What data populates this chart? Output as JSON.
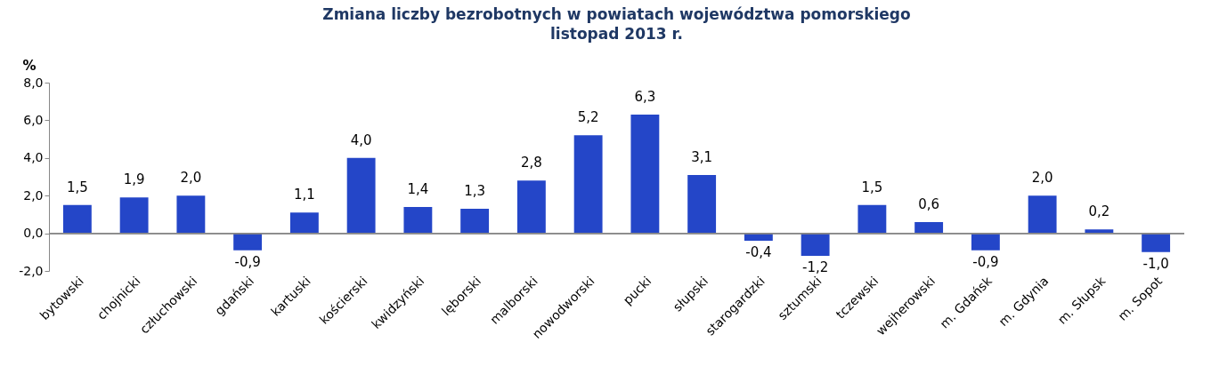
{
  "chart_data": {
    "type": "bar",
    "title": "Zmiana liczby bezrobotnych w  powiatach województwa pomorskiego\nlistopad 2013 r.",
    "ylabel": "%",
    "categories": [
      "bytowski",
      "chojnicki",
      "człuchowski",
      "gdański",
      "kartuski",
      "kościerski",
      "kwidzyński",
      "lęborski",
      "malborski",
      "nowodworski",
      "pucki",
      "słupski",
      "starogardzki",
      "sztumski",
      "tczewski",
      "wejherowski",
      "m. Gdańsk",
      "m. Gdynia",
      "m. Słupsk",
      "m. Sopot"
    ],
    "values": [
      1.5,
      1.9,
      2.0,
      -0.9,
      1.1,
      4.0,
      1.4,
      1.3,
      2.8,
      5.2,
      6.3,
      3.1,
      -0.4,
      -1.2,
      1.5,
      0.6,
      -0.9,
      2.0,
      0.2,
      -1.0
    ],
    "value_labels": [
      "1,5",
      "1,9",
      "2,0",
      "-0,9",
      "1,1",
      "4,0",
      "1,4",
      "1,3",
      "2,8",
      "5,2",
      "6,3",
      "3,1",
      "-0,4",
      "-1,2",
      "1,5",
      "0,6",
      "-0,9",
      "2,0",
      "0,2",
      "-1,0"
    ],
    "color": "#2446c8",
    "ylim": [
      -2,
      8
    ],
    "yticks": [
      {
        "value": -2,
        "label": "-2,0"
      },
      {
        "value": 0,
        "label": "0,0"
      },
      {
        "value": 2,
        "label": "2,0"
      },
      {
        "value": 4,
        "label": "4,0"
      },
      {
        "value": 6,
        "label": "6,0"
      },
      {
        "value": 8,
        "label": "8,0"
      }
    ]
  }
}
